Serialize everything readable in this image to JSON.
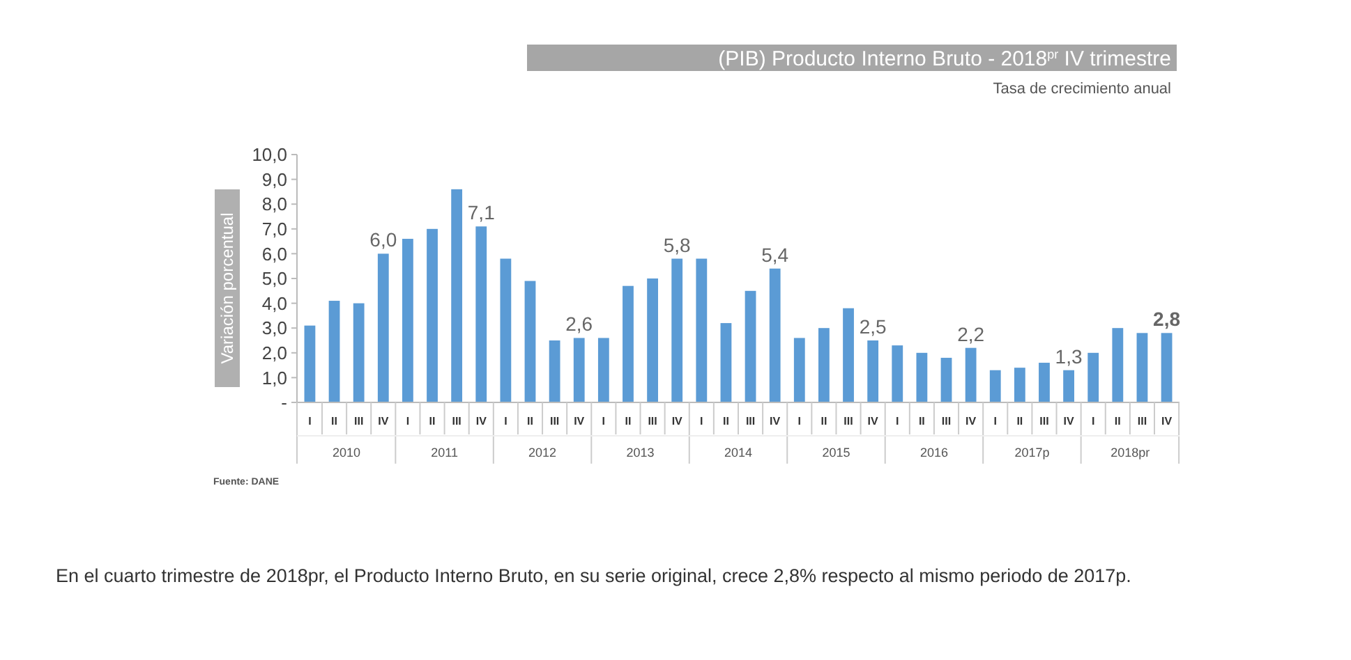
{
  "chart_data": {
    "type": "bar",
    "title": "(PIB) Producto Interno Bruto - 2018$^{pr}$ IV trimestre",
    "subtitle": "Tasa de crecimiento anual",
    "ylabel": "Variación porcentual",
    "categories": [
      "I",
      "II",
      "III",
      "IV",
      "I",
      "II",
      "III",
      "IV",
      "I",
      "II",
      "III",
      "IV",
      "I",
      "II",
      "III",
      "IV",
      "I",
      "II",
      "III",
      "IV",
      "I",
      "II",
      "III",
      "IV",
      "I",
      "II",
      "III",
      "IV",
      "I",
      "II",
      "III",
      "IV",
      "I",
      "II",
      "III",
      "IV"
    ],
    "values": [
      3.1,
      4.1,
      4.0,
      6.0,
      6.6,
      7.0,
      8.6,
      7.1,
      5.8,
      4.9,
      2.5,
      2.6,
      2.6,
      4.7,
      5.0,
      5.8,
      5.8,
      3.2,
      4.5,
      5.4,
      2.6,
      3.0,
      3.8,
      2.5,
      2.3,
      2.0,
      1.8,
      2.2,
      1.3,
      1.4,
      1.6,
      1.3,
      2.0,
      3.0,
      2.8,
      2.8
    ],
    "value_labels": [
      null,
      null,
      null,
      "6,0",
      null,
      null,
      null,
      "7,1",
      null,
      null,
      null,
      "2,6",
      null,
      null,
      null,
      "5,8",
      null,
      null,
      null,
      "5,4",
      null,
      null,
      null,
      "2,5",
      null,
      null,
      null,
      "2,2",
      null,
      null,
      null,
      "1,3",
      null,
      null,
      null,
      "2,8"
    ],
    "color": "#5b9bd5",
    "ylim": [
      0,
      10
    ],
    "yticks": [
      {
        "value": 0,
        "label": "-"
      },
      {
        "value": 1,
        "label": "1,0"
      },
      {
        "value": 2,
        "label": "2,0"
      },
      {
        "value": 3,
        "label": "3,0"
      },
      {
        "value": 4,
        "label": "4,0"
      },
      {
        "value": 5,
        "label": "5,0"
      },
      {
        "value": 6,
        "label": "6,0"
      },
      {
        "value": 7,
        "label": "7,0"
      },
      {
        "value": 8,
        "label": "8,0"
      },
      {
        "value": 9,
        "label": "9,0"
      },
      {
        "value": 10,
        "label": "10,0"
      }
    ],
    "grid": false,
    "annotations": [
      "2010",
      "2011",
      "2012",
      "2013",
      "2014",
      "2015",
      "2016",
      "2017p",
      "2018pr",
      "Fuente: DANE",
      "En el cuarto trimestre de 2018pr, el Producto Interno Bruto, en su serie original, crece 2,8% respecto al mismo periodo de 2017p."
    ]
  }
}
